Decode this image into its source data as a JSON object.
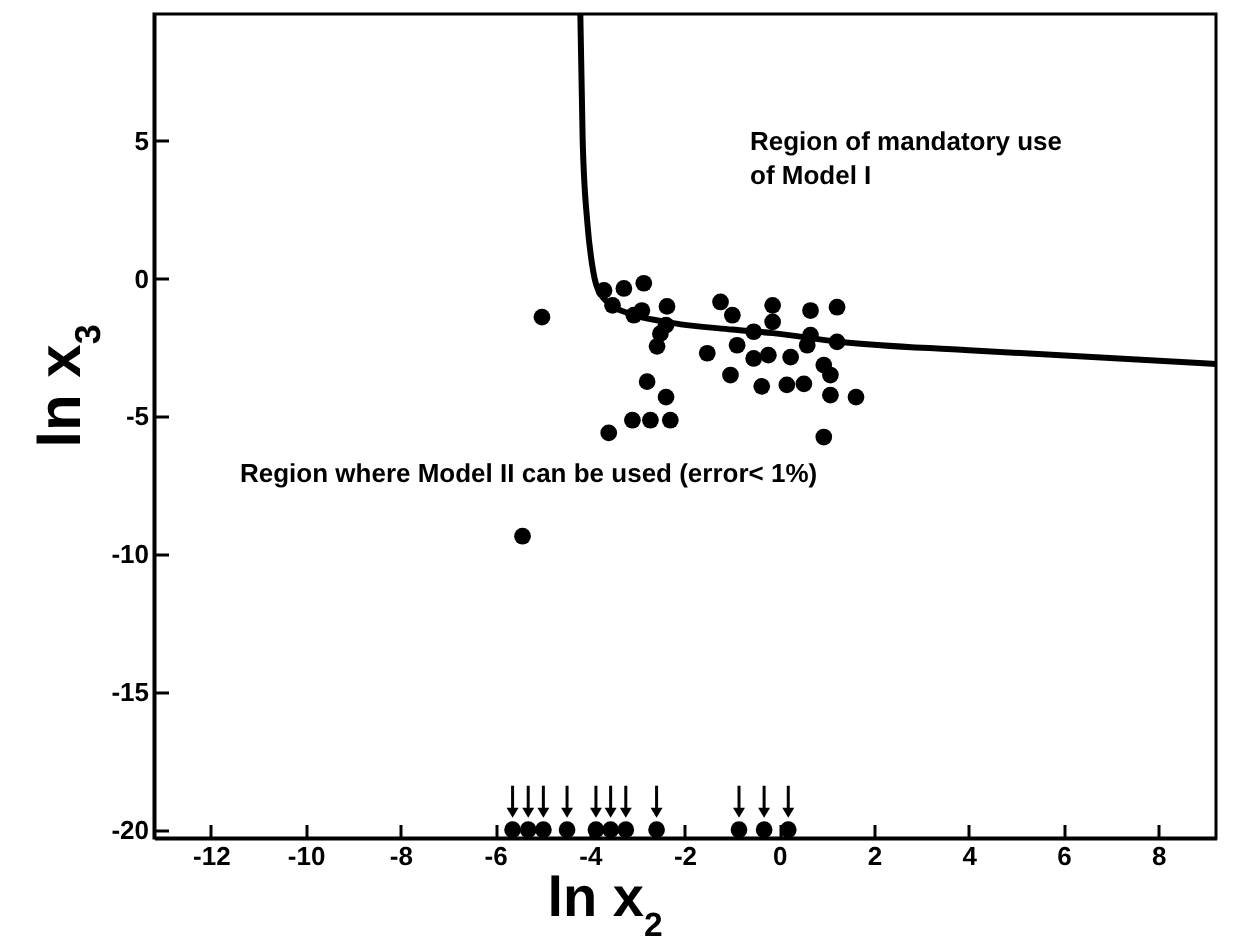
{
  "chart_data": {
    "type": "scatter",
    "xlabel": "ln x$_{2}$",
    "ylabel": "ln x$_{3}$",
    "annotations": [
      "Region of mandatory use\nof Model I",
      "Region where Model II can be used (error< 1%)"
    ],
    "xlim": [
      -13.2,
      9.22
    ],
    "ylim": [
      -20.3,
      9.6
    ],
    "xticks": [
      -12,
      -10,
      -8,
      -6,
      -4,
      -2,
      0,
      2,
      4,
      6,
      8
    ],
    "yticks": [
      5,
      0,
      -5,
      -10,
      -15,
      -20
    ],
    "grid": false,
    "series": [
      {
        "color": "#000000",
        "marker": "circle",
        "x": [
          -5.01,
          -3.7,
          -3.28,
          -2.86,
          -3.52,
          -3.07,
          -2.9,
          -2.37,
          -2.39,
          -2.51,
          -2.58,
          -2.79,
          -2.39,
          -3.6,
          -3.1,
          -2.72,
          -2.3,
          -1.24,
          -0.99,
          -0.14,
          -0.14,
          0.66,
          1.22,
          -1.52,
          -0.89,
          -0.54,
          -0.54,
          -0.23,
          0.24,
          0.59,
          0.66,
          0.94,
          1.22,
          1.08,
          -1.03,
          -0.37,
          0.16,
          0.52,
          1.08,
          1.62,
          0.94,
          -5.42,
          -5.63,
          -5.3,
          -4.98,
          -4.48,
          -3.87,
          -3.56,
          -3.24,
          -2.59,
          -0.85,
          -0.32,
          0.19
        ],
        "values": [
          -1.4,
          -0.43,
          -0.36,
          -0.17,
          -0.97,
          -1.33,
          -1.16,
          -1.01,
          -1.69,
          -2.0,
          -2.46,
          -3.74,
          -4.3,
          -5.6,
          -5.14,
          -5.14,
          -5.14,
          -0.85,
          -1.33,
          -0.97,
          -1.57,
          -1.16,
          -1.04,
          -2.71,
          -2.42,
          -1.93,
          -2.9,
          -2.78,
          -2.85,
          -2.42,
          -2.05,
          -3.14,
          -2.3,
          -3.5,
          -3.5,
          -3.91,
          -3.86,
          -3.82,
          -4.23,
          -4.3,
          -5.75,
          -9.35,
          -20,
          -20,
          -20,
          -20,
          -20,
          -20,
          -20,
          -20,
          -20,
          -20,
          -20
        ]
      },
      {
        "type": "line",
        "color": "#000000",
        "line_style": "solid",
        "marker": "none",
        "x": [
          -4.2,
          -4.15,
          -4.05,
          -3.95,
          -3.85,
          -3.6,
          -3.2,
          -2.4,
          -1,
          -0.14,
          1.3,
          4,
          9.22
        ],
        "values": [
          9.6,
          5,
          2,
          0.5,
          -0.3,
          -0.9,
          -1.25,
          -1.57,
          -1.85,
          -1.98,
          -2.3,
          -2.6,
          -3.1
        ]
      }
    ]
  }
}
